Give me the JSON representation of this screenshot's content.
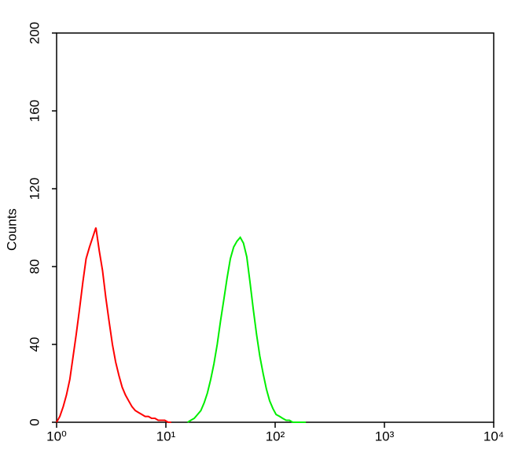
{
  "chart_data": {
    "type": "line",
    "ylabel": "Counts",
    "xscale": "log",
    "xlim": [
      1,
      10000
    ],
    "xticks": [
      {
        "value": 1,
        "label": "10⁰"
      },
      {
        "value": 10,
        "label": "10¹"
      },
      {
        "value": 100,
        "label": "10²"
      },
      {
        "value": 1000,
        "label": "10³"
      },
      {
        "value": 10000,
        "label": "10⁴"
      }
    ],
    "ylim": [
      0,
      200
    ],
    "yticks": [
      0,
      40,
      80,
      120,
      160,
      200
    ],
    "series": [
      {
        "color": "#ff0000",
        "x": [
          1,
          1.07,
          1.15,
          1.23,
          1.32,
          1.41,
          1.51,
          1.62,
          1.74,
          1.86,
          2.0,
          2.14,
          2.29,
          2.46,
          2.63,
          2.82,
          3.02,
          3.24,
          3.47,
          3.72,
          3.98,
          4.27,
          4.57,
          4.9,
          5.25,
          5.62,
          6.03,
          6.46,
          6.92,
          7.41,
          7.94,
          8.51,
          9.12,
          9.77,
          10.5,
          11.2
        ],
        "values": [
          0,
          3,
          8,
          14,
          22,
          33,
          45,
          58,
          72,
          84,
          90,
          95,
          100,
          88,
          78,
          64,
          52,
          40,
          31,
          24,
          18,
          14,
          11,
          8,
          6,
          5,
          4,
          3,
          3,
          2,
          2,
          1,
          1,
          1,
          0,
          0
        ]
      },
      {
        "color": "#00ee00",
        "x": [
          15.8,
          16.9,
          18.2,
          19.5,
          20.9,
          22.4,
          24,
          25.7,
          27.5,
          29.5,
          31.6,
          33.9,
          36.3,
          38.9,
          41.7,
          44.7,
          47.9,
          51.3,
          55,
          58.9,
          63.1,
          67.6,
          72.4,
          77.6,
          83.2,
          89.1,
          95.5,
          102,
          110,
          117,
          126,
          135,
          145,
          155,
          166,
          178,
          191
        ],
        "values": [
          0,
          1,
          2,
          4,
          6,
          10,
          15,
          22,
          30,
          40,
          52,
          63,
          74,
          84,
          90,
          93,
          95,
          92,
          85,
          72,
          58,
          45,
          34,
          25,
          17,
          11,
          7,
          4,
          3,
          2,
          1,
          1,
          0,
          0,
          0,
          0,
          0
        ]
      }
    ]
  }
}
